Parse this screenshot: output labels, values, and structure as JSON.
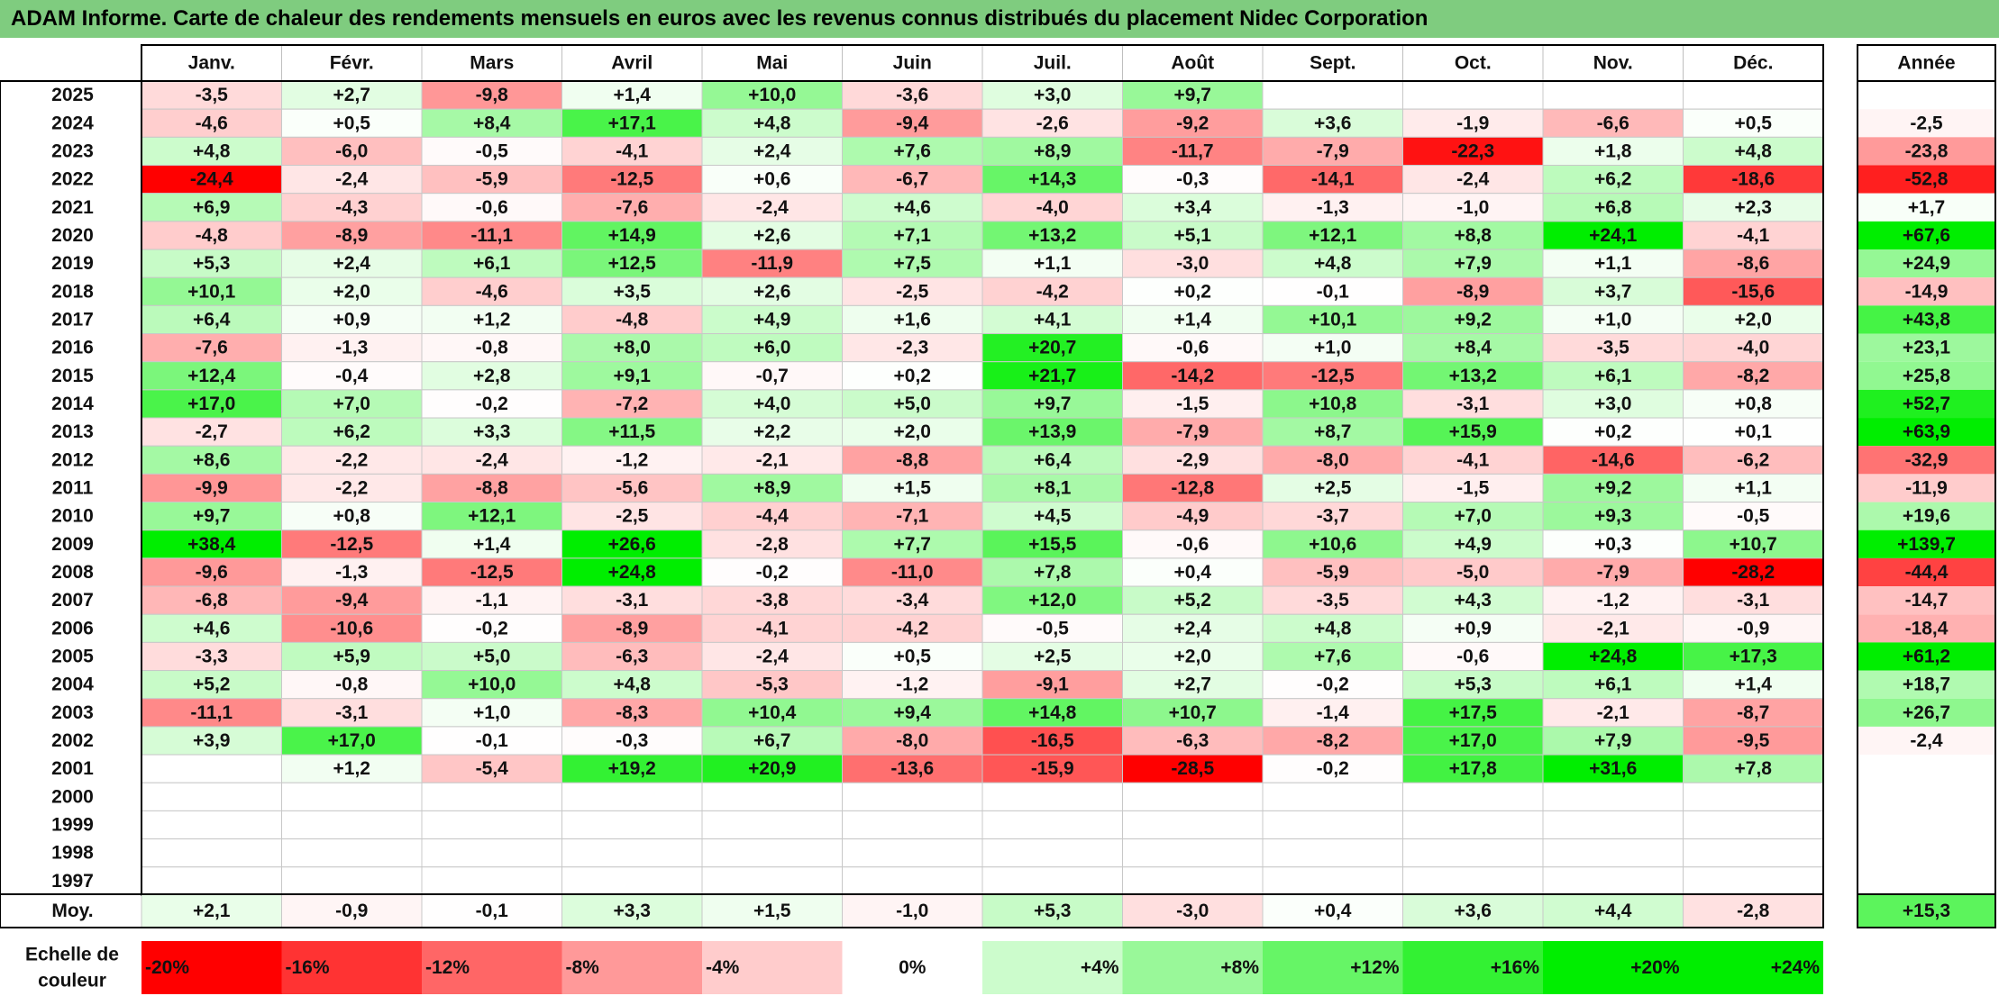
{
  "title": "ADAM Informe. Carte de chaleur des rendements mensuels en euros avec les revenus connus distribués du placement Nidec Corporation",
  "chart_data": {
    "type": "heatmap",
    "title": "ADAM Informe. Carte de chaleur des rendements mensuels en euros avec les revenus connus distribués du placement Nidec Corporation",
    "columns": [
      "Janv.",
      "Févr.",
      "Mars",
      "Avril",
      "Mai",
      "Juin",
      "Juil.",
      "Août",
      "Sept.",
      "Oct.",
      "Nov.",
      "Déc."
    ],
    "year_header": "Année",
    "rows": [
      {
        "label": "2025",
        "values": [
          "-3,5",
          "+2,7",
          "-9,8",
          "+1,4",
          "+10,0",
          "-3,6",
          "+3,0",
          "+9,7",
          "",
          "",
          "",
          ""
        ],
        "year": ""
      },
      {
        "label": "2024",
        "values": [
          "-4,6",
          "+0,5",
          "+8,4",
          "+17,1",
          "+4,8",
          "-9,4",
          "-2,6",
          "-9,2",
          "+3,6",
          "-1,9",
          "-6,6",
          "+0,5"
        ],
        "year": "-2,5"
      },
      {
        "label": "2023",
        "values": [
          "+4,8",
          "-6,0",
          "-0,5",
          "-4,1",
          "+2,4",
          "+7,6",
          "+8,9",
          "-11,7",
          "-7,9",
          "-22,3",
          "+1,8",
          "+4,8"
        ],
        "year": "-23,8"
      },
      {
        "label": "2022",
        "values": [
          "-24,4",
          "-2,4",
          "-5,9",
          "-12,5",
          "+0,6",
          "-6,7",
          "+14,3",
          "-0,3",
          "-14,1",
          "-2,4",
          "+6,2",
          "-18,6"
        ],
        "year": "-52,8"
      },
      {
        "label": "2021",
        "values": [
          "+6,9",
          "-4,3",
          "-0,6",
          "-7,6",
          "-2,4",
          "+4,6",
          "-4,0",
          "+3,4",
          "-1,3",
          "-1,0",
          "+6,8",
          "+2,3"
        ],
        "year": "+1,7"
      },
      {
        "label": "2020",
        "values": [
          "-4,8",
          "-8,9",
          "-11,1",
          "+14,9",
          "+2,6",
          "+7,1",
          "+13,2",
          "+5,1",
          "+12,1",
          "+8,8",
          "+24,1",
          "-4,1"
        ],
        "year": "+67,6"
      },
      {
        "label": "2019",
        "values": [
          "+5,3",
          "+2,4",
          "+6,1",
          "+12,5",
          "-11,9",
          "+7,5",
          "+1,1",
          "-3,0",
          "+4,8",
          "+7,9",
          "+1,1",
          "-8,6"
        ],
        "year": "+24,9"
      },
      {
        "label": "2018",
        "values": [
          "+10,1",
          "+2,0",
          "-4,6",
          "+3,5",
          "+2,6",
          "-2,5",
          "-4,2",
          "+0,2",
          "-0,1",
          "-8,9",
          "+3,7",
          "-15,6"
        ],
        "year": "-14,9"
      },
      {
        "label": "2017",
        "values": [
          "+6,4",
          "+0,9",
          "+1,2",
          "-4,8",
          "+4,9",
          "+1,6",
          "+4,1",
          "+1,4",
          "+10,1",
          "+9,2",
          "+1,0",
          "+2,0"
        ],
        "year": "+43,8"
      },
      {
        "label": "2016",
        "values": [
          "-7,6",
          "-1,3",
          "-0,8",
          "+8,0",
          "+6,0",
          "-2,3",
          "+20,7",
          "-0,6",
          "+1,0",
          "+8,4",
          "-3,5",
          "-4,0"
        ],
        "year": "+23,1"
      },
      {
        "label": "2015",
        "values": [
          "+12,4",
          "-0,4",
          "+2,8",
          "+9,1",
          "-0,7",
          "+0,2",
          "+21,7",
          "-14,2",
          "-12,5",
          "+13,2",
          "+6,1",
          "-8,2"
        ],
        "year": "+25,8"
      },
      {
        "label": "2014",
        "values": [
          "+17,0",
          "+7,0",
          "-0,2",
          "-7,2",
          "+4,0",
          "+5,0",
          "+9,7",
          "-1,5",
          "+10,8",
          "-3,1",
          "+3,0",
          "+0,8"
        ],
        "year": "+52,7"
      },
      {
        "label": "2013",
        "values": [
          "-2,7",
          "+6,2",
          "+3,3",
          "+11,5",
          "+2,2",
          "+2,0",
          "+13,9",
          "-7,9",
          "+8,7",
          "+15,9",
          "+0,2",
          "+0,1"
        ],
        "year": "+63,9"
      },
      {
        "label": "2012",
        "values": [
          "+8,6",
          "-2,2",
          "-2,4",
          "-1,2",
          "-2,1",
          "-8,8",
          "+6,4",
          "-2,9",
          "-8,0",
          "-4,1",
          "-14,6",
          "-6,2"
        ],
        "year": "-32,9"
      },
      {
        "label": "2011",
        "values": [
          "-9,9",
          "-2,2",
          "-8,8",
          "-5,6",
          "+8,9",
          "+1,5",
          "+8,1",
          "-12,8",
          "+2,5",
          "-1,5",
          "+9,2",
          "+1,1"
        ],
        "year": "-11,9"
      },
      {
        "label": "2010",
        "values": [
          "+9,7",
          "+0,8",
          "+12,1",
          "-2,5",
          "-4,4",
          "-7,1",
          "+4,5",
          "-4,9",
          "-3,7",
          "+7,0",
          "+9,3",
          "-0,5"
        ],
        "year": "+19,6"
      },
      {
        "label": "2009",
        "values": [
          "+38,4",
          "-12,5",
          "+1,4",
          "+26,6",
          "-2,8",
          "+7,7",
          "+15,5",
          "-0,6",
          "+10,6",
          "+4,9",
          "+0,3",
          "+10,7"
        ],
        "year": "+139,7"
      },
      {
        "label": "2008",
        "values": [
          "-9,6",
          "-1,3",
          "-12,5",
          "+24,8",
          "-0,2",
          "-11,0",
          "+7,8",
          "+0,4",
          "-5,9",
          "-5,0",
          "-7,9",
          "-28,2"
        ],
        "year": "-44,4"
      },
      {
        "label": "2007",
        "values": [
          "-6,8",
          "-9,4",
          "-1,1",
          "-3,1",
          "-3,8",
          "-3,4",
          "+12,0",
          "+5,2",
          "-3,5",
          "+4,3",
          "-1,2",
          "-3,1"
        ],
        "year": "-14,7"
      },
      {
        "label": "2006",
        "values": [
          "+4,6",
          "-10,6",
          "-0,2",
          "-8,9",
          "-4,1",
          "-4,2",
          "-0,5",
          "+2,4",
          "+4,8",
          "+0,9",
          "-2,1",
          "-0,9"
        ],
        "year": "-18,4"
      },
      {
        "label": "2005",
        "values": [
          "-3,3",
          "+5,9",
          "+5,0",
          "-6,3",
          "-2,4",
          "+0,5",
          "+2,5",
          "+2,0",
          "+7,6",
          "-0,6",
          "+24,8",
          "+17,3"
        ],
        "year": "+61,2"
      },
      {
        "label": "2004",
        "values": [
          "+5,2",
          "-0,8",
          "+10,0",
          "+4,8",
          "-5,3",
          "-1,2",
          "-9,1",
          "+2,7",
          "-0,2",
          "+5,3",
          "+6,1",
          "+1,4"
        ],
        "year": "+18,7"
      },
      {
        "label": "2003",
        "values": [
          "-11,1",
          "-3,1",
          "+1,0",
          "-8,3",
          "+10,4",
          "+9,4",
          "+14,8",
          "+10,7",
          "-1,4",
          "+17,5",
          "-2,1",
          "-8,7"
        ],
        "year": "+26,7"
      },
      {
        "label": "2002",
        "values": [
          "+3,9",
          "+17,0",
          "-0,1",
          "-0,3",
          "+6,7",
          "-8,0",
          "-16,5",
          "-6,3",
          "-8,2",
          "+17,0",
          "+7,9",
          "-9,5"
        ],
        "year": "-2,4"
      },
      {
        "label": "2001",
        "values": [
          "",
          "+1,2",
          "-5,4",
          "+19,2",
          "+20,9",
          "-13,6",
          "-15,9",
          "-28,5",
          "-0,2",
          "+17,8",
          "+31,6",
          "+7,8"
        ],
        "year": ""
      },
      {
        "label": "2000",
        "values": [
          "",
          "",
          "",
          "",
          "",
          "",
          "",
          "",
          "",
          "",
          "",
          ""
        ],
        "year": ""
      },
      {
        "label": "1999",
        "values": [
          "",
          "",
          "",
          "",
          "",
          "",
          "",
          "",
          "",
          "",
          "",
          ""
        ],
        "year": ""
      },
      {
        "label": "1998",
        "values": [
          "",
          "",
          "",
          "",
          "",
          "",
          "",
          "",
          "",
          "",
          "",
          ""
        ],
        "year": ""
      },
      {
        "label": "1997",
        "values": [
          "",
          "",
          "",
          "",
          "",
          "",
          "",
          "",
          "",
          "",
          "",
          ""
        ],
        "year": ""
      }
    ],
    "average": {
      "label": "Moy.",
      "values": [
        "+2,1",
        "-0,9",
        "-0,1",
        "+3,3",
        "+1,5",
        "-1,0",
        "+5,3",
        "-3,0",
        "+0,4",
        "+3,6",
        "+4,4",
        "-2,8"
      ],
      "year": "+15,3"
    },
    "scale": {
      "label_line1": "Echelle de",
      "label_line2": "couleur",
      "steps": [
        {
          "label": "-20%",
          "value": -20
        },
        {
          "label": "-16%",
          "value": -16
        },
        {
          "label": "-12%",
          "value": -12
        },
        {
          "label": "-8%",
          "value": -8
        },
        {
          "label": "-4%",
          "value": -4
        },
        {
          "label": "0%",
          "value": 0
        },
        {
          "label": "+4%",
          "value": 4
        },
        {
          "label": "+8%",
          "value": 8
        },
        {
          "label": "+12%",
          "value": 12
        },
        {
          "label": "+16%",
          "value": 16
        },
        {
          "label": "+20%",
          "value": 20
        },
        {
          "label": "+24%",
          "value": 24
        }
      ]
    },
    "colors": {
      "negative": "#ff0000",
      "neutral": "#ffffff",
      "positive": "#00ee00",
      "title_bg": "#7fcc7f"
    }
  }
}
